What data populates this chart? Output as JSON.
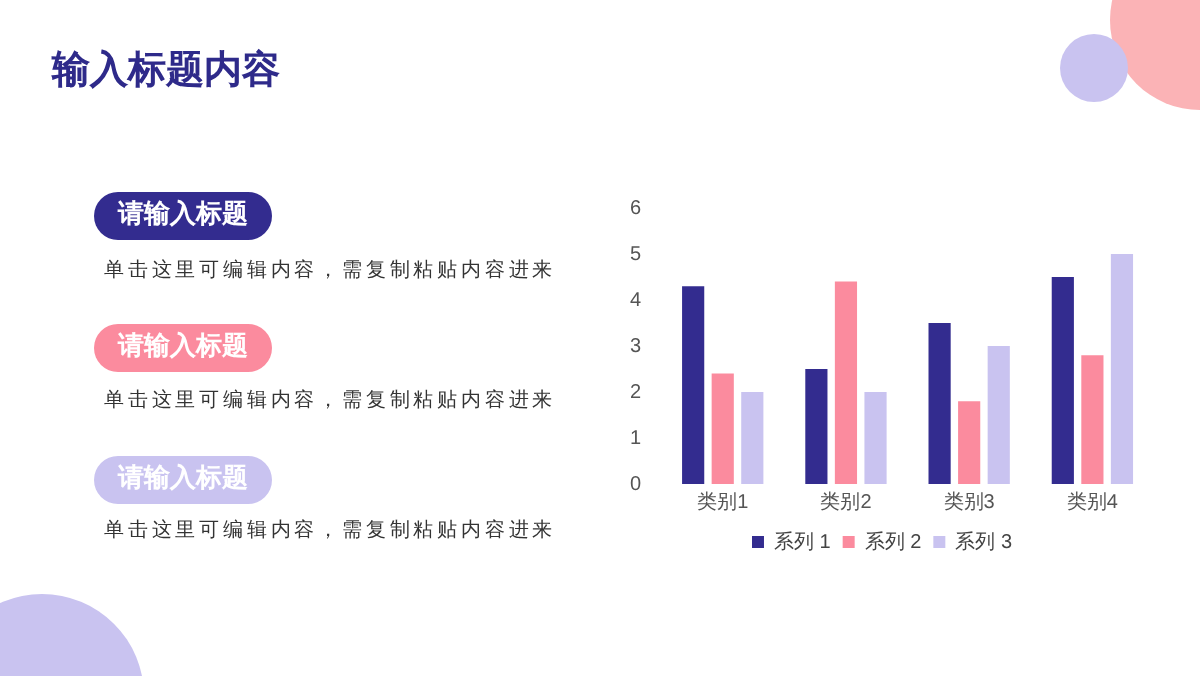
{
  "chart_data": {
    "type": "bar",
    "title": "输入标题内容",
    "categories": [
      "类别1",
      "类别2",
      "类别3",
      "类别4"
    ],
    "series": [
      {
        "name": "系列 1",
        "color": "#332c8f",
        "values": [
          4.3,
          2.5,
          3.5,
          4.5
        ]
      },
      {
        "name": "系列 2",
        "color": "#fb8b9e",
        "values": [
          2.4,
          4.4,
          1.8,
          2.8
        ]
      },
      {
        "name": "系列 3",
        "color": "#c9c3f0",
        "values": [
          2,
          2,
          3,
          5
        ]
      }
    ],
    "ylim": [
      0,
      6
    ],
    "yticks": [
      0,
      1,
      2,
      3,
      4,
      5,
      6
    ],
    "grid": false,
    "legend": "bottom",
    "annotations": [
      "请输入标题",
      "单击这里可编辑内容，需复制粘贴内容进来",
      "请输入标题",
      "单击这里可编辑内容，需复制粘贴内容进来",
      "请输入标题",
      "单击这里可编辑内容，需复制粘贴内容进来"
    ]
  }
}
